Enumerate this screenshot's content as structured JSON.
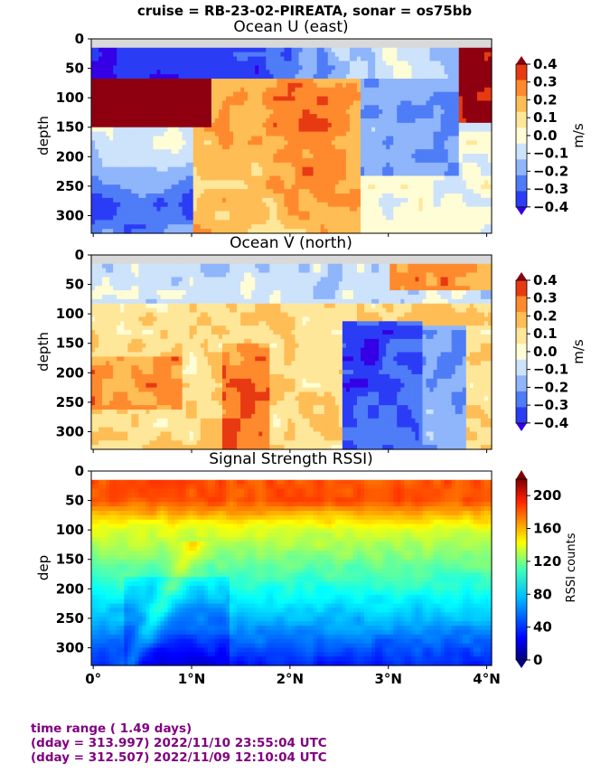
{
  "suptitle": "cruise = RB-23-02-PIREATA,  sonar = os75bb",
  "colors": {
    "velocity_levels": [
      "#3500e6",
      "#2b3cf5",
      "#4f7cf7",
      "#8fb5fb",
      "#cde2fb",
      "#fffdd5",
      "#ffe79a",
      "#ffbd56",
      "#ff8a2e",
      "#e83a12",
      "#8e0010"
    ],
    "footer_text": "#800080",
    "nodata": "#d9d9d9"
  },
  "x_ticks": [
    "0°",
    "1°N",
    "2°N",
    "3°N",
    "4°N"
  ],
  "footer": [
    "time range ( 1.49 days)",
    "(dday = 313.997) 2022/11/10 23:55:04 UTC",
    "(dday = 312.507) 2022/11/09 12:10:04 UTC"
  ],
  "chart_data": [
    {
      "type": "heatmap",
      "title": "Ocean U (east)",
      "ylabel": "depth",
      "yticks": [
        "0",
        "50",
        "100",
        "150",
        "200",
        "250",
        "300"
      ],
      "ylim": [
        330,
        0
      ],
      "xlim": [
        -0.02,
        4.05
      ],
      "x_tick_values": [
        0,
        1,
        2,
        3,
        4
      ],
      "colorbar": {
        "label": "m/s",
        "ticks": [
          "0.4",
          "0.3",
          "0.2",
          "0.1",
          "0.0",
          "−0.1",
          "−0.2",
          "−0.3",
          "−0.4"
        ],
        "range": [
          -0.4,
          0.4
        ]
      },
      "description_bands": {
        "surface_5_20m": "no data",
        "20_70m": -0.35,
        "70_150m_south": 0.35,
        "150_330m_south": -0.15,
        "mid_lat_100_300m": 0.15,
        "north_100_200m": -0.2,
        "north_surface": 0.3
      }
    },
    {
      "type": "heatmap",
      "title": "Ocean V (north)",
      "ylabel": "depth",
      "yticks": [
        "0",
        "50",
        "100",
        "150",
        "200",
        "250",
        "300"
      ],
      "ylim": [
        330,
        0
      ],
      "xlim": [
        -0.02,
        4.05
      ],
      "x_tick_values": [
        0,
        1,
        2,
        3,
        4
      ],
      "colorbar": {
        "label": "m/s",
        "ticks": [
          "0.4",
          "0.3",
          "0.2",
          "0.1",
          "0.0",
          "−0.1",
          "−0.2",
          "−0.3",
          "−0.4"
        ],
        "range": [
          -0.4,
          0.4
        ]
      },
      "description_bands": {
        "20_80m": -0.15,
        "south_150_300m": 0.15,
        "core_2.8N_150_300m": -0.35,
        "north_surface": 0.2
      }
    },
    {
      "type": "heatmap",
      "title": "Signal Strength RSSI)",
      "ylabel": "dep",
      "yticks": [
        "0",
        "50",
        "100",
        "150",
        "200",
        "250",
        "300"
      ],
      "ylim": [
        330,
        0
      ],
      "xlim": [
        -0.02,
        4.05
      ],
      "x_tick_values": [
        0,
        1,
        2,
        3,
        4
      ],
      "colorbar": {
        "label": "RSSI counts",
        "ticks": [
          "200",
          "160",
          "120",
          "80",
          "40",
          "0"
        ],
        "range": [
          0,
          220
        ]
      },
      "description_bands": {
        "20_50m": 170,
        "100m": 130,
        "150m": 100,
        "200m": 70,
        "300m": 40
      }
    }
  ]
}
